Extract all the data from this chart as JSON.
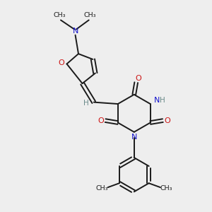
{
  "bg_color": "#eeeeee",
  "bond_color": "#1a1a1a",
  "N_color": "#1414cc",
  "O_color": "#cc1414",
  "H_color": "#6a8a8a",
  "figsize": [
    3.0,
    3.0
  ],
  "dpi": 100,
  "xlim": [
    0,
    10
  ],
  "ylim": [
    0,
    10
  ]
}
